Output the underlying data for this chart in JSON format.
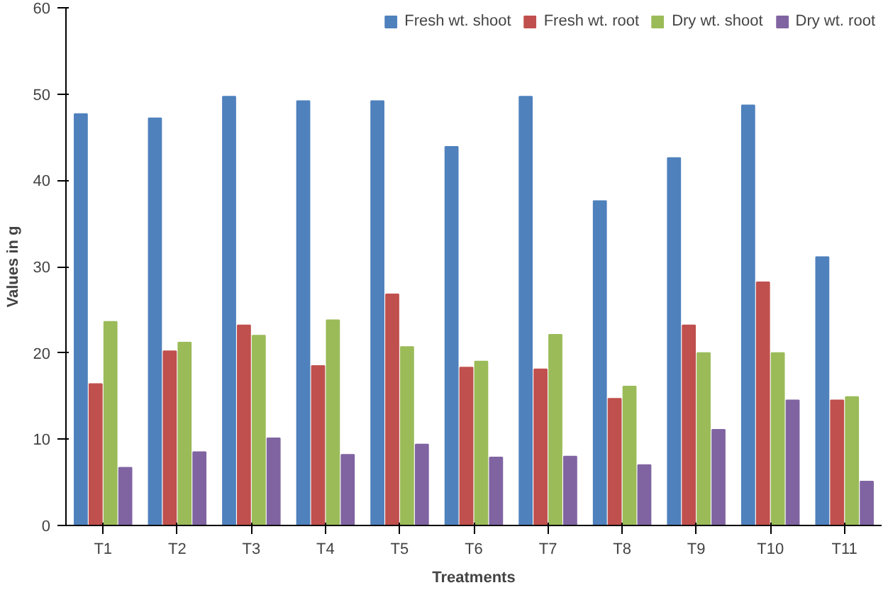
{
  "chart_data": {
    "type": "bar",
    "xlabel": "Treatments",
    "ylabel": "Values in g",
    "categories": [
      "T1",
      "T2",
      "T3",
      "T4",
      "T5",
      "T6",
      "T7",
      "T8",
      "T9",
      "T10",
      "T11"
    ],
    "series": [
      {
        "name": "Fresh wt. shoot",
        "color": "#4f81bd",
        "values": [
          47.7,
          47.2,
          49.7,
          49.2,
          49.2,
          43.9,
          49.7,
          37.6,
          42.6,
          48.7,
          31.1
        ]
      },
      {
        "name": "Fresh wt. root",
        "color": "#c0504d",
        "values": [
          16.4,
          20.2,
          23.2,
          18.5,
          26.8,
          18.3,
          18.1,
          14.7,
          23.2,
          28.2,
          14.5
        ]
      },
      {
        "name": "Dry wt. shoot",
        "color": "#9bbb59",
        "values": [
          23.6,
          21.2,
          22.0,
          23.8,
          20.7,
          19.0,
          22.1,
          16.1,
          20.0,
          20.0,
          14.9
        ]
      },
      {
        "name": "Dry wt. root",
        "color": "#8064a2",
        "values": [
          6.7,
          8.5,
          10.1,
          8.2,
          9.4,
          7.9,
          8.0,
          7.0,
          11.1,
          14.5,
          5.1
        ]
      }
    ],
    "ylim": [
      0,
      60
    ],
    "yticks": [
      0,
      10,
      20,
      30,
      40,
      50,
      60
    ],
    "grid": false,
    "legend": "top right"
  }
}
